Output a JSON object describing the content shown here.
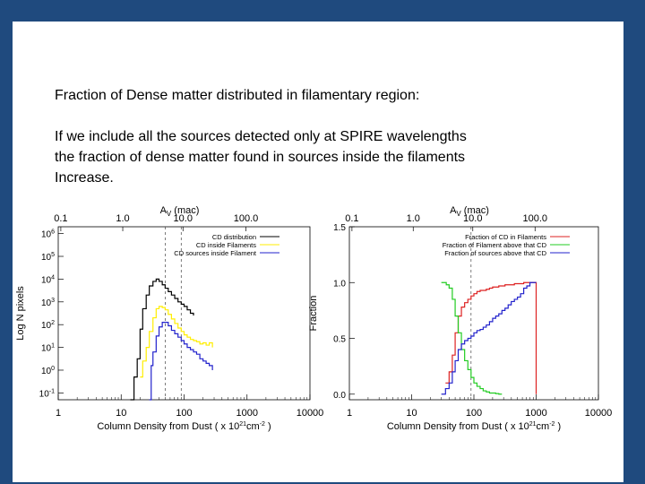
{
  "slide": {
    "heading": "Fraction of Dense matter distributed in filamentary region:",
    "body_lines": [
      "If we include all the sources detected only at SPIRE wavelengths",
      "the fraction of dense matter found in sources inside the filaments",
      "Increase."
    ]
  },
  "colors": {
    "background": "#1f4a7e",
    "black": "#000000",
    "green": "#22cc22",
    "yellow": "#ffee00",
    "blue": "#2222cc",
    "red": "#dd2222"
  },
  "chart_data": [
    {
      "type": "line",
      "xscale": "log",
      "yscale": "log",
      "xlabel": "Column Density from Dust ( x 10",
      "xlabel_exp": "21",
      "xlabel_unit": "cm",
      "xlabel_unit_exp": "-2",
      "ylabel": "Log N pixels",
      "top_axis_label": "A",
      "top_axis_sub": "V",
      "top_axis_unit": "(mac)",
      "top_ticks": [
        "0.1",
        "1.0",
        "10.0",
        "100.0"
      ],
      "top_tick_x": [
        1.1,
        10.6,
        96,
        960
      ],
      "x_ticks": [
        "1",
        "10",
        "100",
        "1000",
        "10000"
      ],
      "x_tick_values": [
        1,
        10,
        100,
        1000,
        10000
      ],
      "y_ticks": [
        {
          "m": "10",
          "e": "6"
        },
        {
          "m": "10",
          "e": "5"
        },
        {
          "m": "10",
          "e": "4"
        },
        {
          "m": "10",
          "e": "3"
        },
        {
          "m": "10",
          "e": "2"
        },
        {
          "m": "10",
          "e": "1"
        },
        {
          "m": "10",
          "e": "0"
        },
        {
          "m": "10",
          "e": "-1"
        }
      ],
      "y_tick_values": [
        6,
        5,
        4,
        3,
        2,
        1,
        0,
        -1
      ],
      "xlim": [
        1,
        10000
      ],
      "ylim": [
        -1.3,
        6.3
      ],
      "vlines": [
        50,
        90
      ],
      "legend": {
        "placement": "top-right",
        "entries": [
          "CD distribution",
          "CD inside Filaments",
          "CD sources inside Filament"
        ]
      },
      "series": [
        {
          "name": "CD distribution",
          "color": "#000000",
          "x": [
            14,
            16,
            18,
            20,
            22,
            25,
            28,
            32,
            36,
            40,
            45,
            50,
            56,
            63,
            71,
            80,
            90,
            100,
            112,
            126,
            141
          ],
          "y": [
            -1.3,
            -0.3,
            0.5,
            1.8,
            2.7,
            3.3,
            3.7,
            3.9,
            4.0,
            3.9,
            3.75,
            3.6,
            3.45,
            3.3,
            3.15,
            3.0,
            2.9,
            2.8,
            2.65,
            2.5,
            2.4
          ]
        },
        {
          "name": "CD inside Filaments",
          "color": "#ffee00",
          "x": [
            20,
            22,
            25,
            28,
            32,
            36,
            40,
            45,
            50,
            56,
            63,
            71,
            80,
            90,
            100,
            112,
            126,
            141,
            158,
            178,
            200,
            224,
            251,
            282
          ],
          "y": [
            -0.3,
            0.4,
            1.0,
            1.7,
            2.3,
            2.7,
            2.8,
            2.75,
            2.65,
            2.45,
            2.25,
            2.05,
            1.85,
            1.7,
            1.55,
            1.45,
            1.35,
            1.3,
            1.25,
            1.15,
            1.2,
            1.1,
            1.2,
            1.0
          ]
        },
        {
          "name": "CD sources inside Filament",
          "color": "#2222cc",
          "x": [
            28,
            30,
            32,
            36,
            40,
            45,
            50,
            56,
            63,
            71,
            80,
            90,
            100,
            112,
            126,
            141,
            158,
            178,
            200,
            224,
            251,
            282
          ],
          "y": [
            -1.3,
            0.2,
            0.8,
            1.5,
            1.9,
            2.1,
            2.1,
            1.95,
            1.75,
            1.6,
            1.45,
            1.3,
            1.15,
            1.0,
            0.9,
            0.8,
            0.7,
            0.5,
            0.4,
            0.3,
            0.2,
            0.0
          ]
        }
      ]
    },
    {
      "type": "line",
      "xscale": "log",
      "yscale": "linear",
      "xlabel": "Column Density from Dust ( x 10",
      "xlabel_exp": "21",
      "xlabel_unit": "cm",
      "xlabel_unit_exp": "-2",
      "ylabel": "Fraction",
      "top_axis_label": "A",
      "top_axis_sub": "V",
      "top_axis_unit": "(mac)",
      "top_ticks": [
        "0.1",
        "1.0",
        "10.0",
        "100.0"
      ],
      "top_tick_x": [
        1.1,
        10.6,
        96,
        960
      ],
      "x_ticks": [
        "1",
        "10",
        "100",
        "1000",
        "10000"
      ],
      "x_tick_values": [
        1,
        10,
        100,
        1000,
        10000
      ],
      "y_ticks": [
        {
          "m": "0.0"
        },
        {
          "m": "0.5"
        },
        {
          "m": "1.0"
        },
        {
          "m": "1.5"
        }
      ],
      "y_tick_values": [
        0.0,
        0.5,
        1.0,
        1.5
      ],
      "xlim": [
        1,
        10000
      ],
      "ylim": [
        -0.05,
        1.5
      ],
      "vlines": [
        90
      ],
      "legend": {
        "placement": "top-right",
        "entries": [
          "Fraction of CD in Filaments",
          "Fraction of Filament above that CD",
          "Fraction of sources above that CD"
        ]
      },
      "series": [
        {
          "name": "Fraction of CD in Filaments",
          "color": "#dd2222",
          "x": [
            35,
            40,
            45,
            50,
            56,
            63,
            71,
            80,
            90,
            100,
            112,
            126,
            141,
            158,
            178,
            200,
            224,
            251,
            282,
            316,
            355,
            398,
            447,
            501,
            562,
            631,
            708,
            794,
            891,
            1000
          ],
          "y": [
            0.1,
            0.2,
            0.35,
            0.55,
            0.7,
            0.78,
            0.82,
            0.85,
            0.88,
            0.9,
            0.92,
            0.93,
            0.93,
            0.94,
            0.95,
            0.96,
            0.96,
            0.97,
            0.97,
            0.98,
            0.98,
            0.98,
            0.99,
            0.99,
            0.99,
            1.0,
            1.0,
            1.0,
            1.0,
            0.0
          ]
        },
        {
          "name": "Fraction of Filament above that CD",
          "color": "#22cc22",
          "x": [
            30,
            32,
            36,
            40,
            45,
            50,
            56,
            63,
            71,
            80,
            90,
            100,
            112,
            126,
            141,
            158,
            178,
            200,
            224,
            251,
            282
          ],
          "y": [
            1.0,
            1.0,
            0.98,
            0.95,
            0.85,
            0.7,
            0.55,
            0.4,
            0.3,
            0.22,
            0.15,
            0.1,
            0.07,
            0.05,
            0.03,
            0.02,
            0.01,
            0.01,
            0.005,
            0.0,
            0.0
          ]
        },
        {
          "name": "Fraction of sources above that CD",
          "color": "#2222cc",
          "x": [
            30,
            35,
            40,
            45,
            50,
            56,
            63,
            71,
            80,
            90,
            100,
            112,
            126,
            141,
            158,
            178,
            200,
            224,
            251,
            282,
            316,
            355,
            398,
            447,
            501,
            562,
            631,
            708,
            794,
            891,
            1000
          ],
          "y": [
            0.0,
            0.05,
            0.1,
            0.2,
            0.3,
            0.4,
            0.45,
            0.48,
            0.5,
            0.52,
            0.55,
            0.57,
            0.58,
            0.6,
            0.62,
            0.65,
            0.68,
            0.7,
            0.72,
            0.75,
            0.77,
            0.8,
            0.83,
            0.85,
            0.87,
            0.9,
            0.95,
            0.97,
            1.0,
            1.0,
            1.0
          ]
        }
      ]
    }
  ]
}
